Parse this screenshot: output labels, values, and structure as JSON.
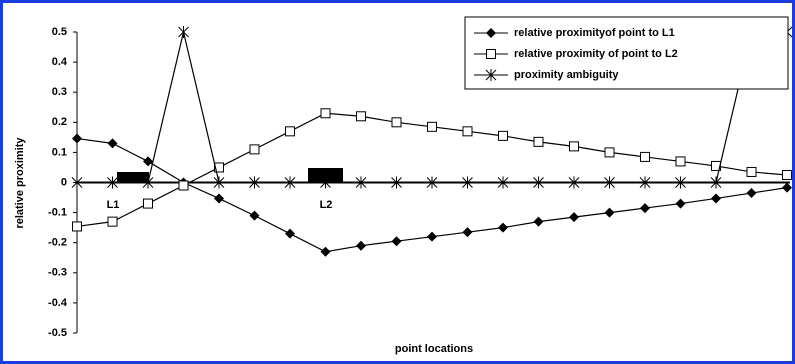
{
  "chart_data": {
    "type": "line",
    "x_label": "point locations",
    "y_label": "relative proximity",
    "categories": [
      null,
      null,
      null,
      null,
      null,
      null,
      null,
      null,
      null,
      null,
      null,
      null,
      null,
      null,
      null,
      null,
      null,
      null,
      null,
      null,
      null
    ],
    "series": [
      {
        "name": "relative proximityof point to L1",
        "color": "#000000",
        "marker": "diamond",
        "values": [
          0.146,
          0.13,
          0.07,
          0.0,
          -0.053,
          -0.11,
          -0.17,
          -0.23,
          -0.21,
          -0.195,
          -0.18,
          -0.165,
          -0.15,
          -0.13,
          -0.115,
          -0.1,
          -0.085,
          -0.07,
          -0.053,
          -0.035,
          -0.017
        ]
      },
      {
        "name": "relative proximity of point to L2",
        "color": "#000000",
        "marker": "square",
        "values": [
          -0.146,
          -0.13,
          -0.07,
          -0.01,
          0.05,
          0.11,
          0.17,
          0.23,
          0.22,
          0.2,
          0.185,
          0.17,
          0.155,
          0.135,
          0.12,
          0.1,
          0.085,
          0.07,
          0.055,
          0.035,
          0.025
        ]
      },
      {
        "name": "proximity ambiguity",
        "color": "#000000",
        "marker": "star",
        "values": [
          0,
          0,
          0,
          0.5,
          0,
          0,
          0,
          0,
          0,
          0,
          0,
          0,
          0,
          0,
          0,
          0,
          0,
          0,
          0,
          0.5,
          0.5
        ]
      }
    ],
    "annotations": [
      "L1",
      "L2"
    ],
    "ylim": [
      -0.5,
      0.5
    ],
    "yticks": [
      -0.5,
      -0.4,
      -0.3,
      -0.2,
      -0.1,
      0,
      0.1,
      0.2,
      0.3,
      0.4,
      0.5
    ],
    "legend": "top-right"
  }
}
